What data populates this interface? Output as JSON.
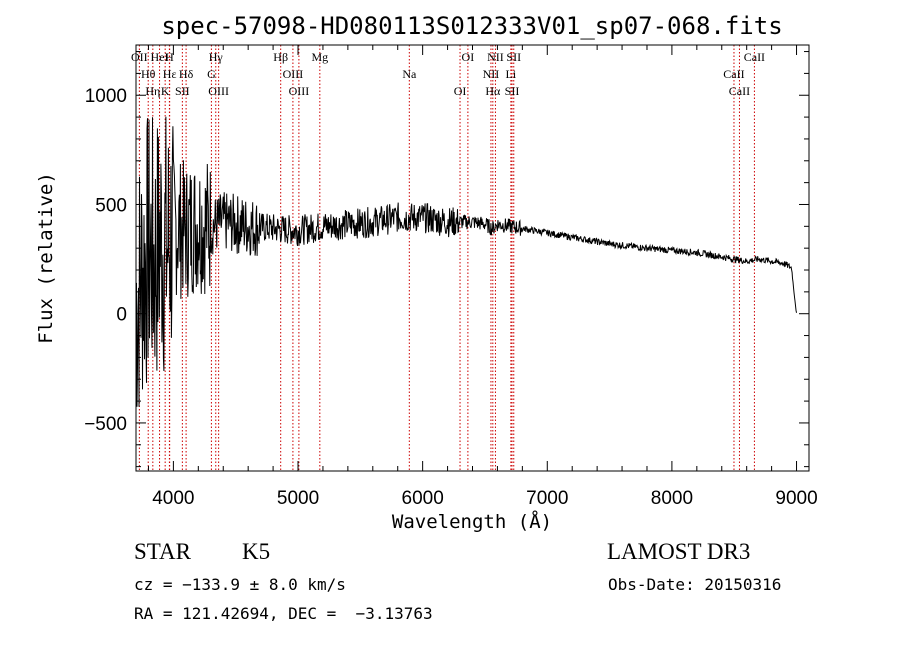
{
  "chart_data": {
    "type": "line",
    "title": "spec-57098-HD080113S012333V01_sp07-068.fits",
    "xlabel": "Wavelength (Å)",
    "ylabel": "Flux (relative)",
    "xlim": [
      3700,
      9100
    ],
    "ylim": [
      -720,
      1230
    ],
    "xticks": [
      4000,
      5000,
      6000,
      7000,
      8000,
      9000
    ],
    "yticks": [
      -500,
      0,
      500,
      1000
    ],
    "grid": false,
    "spectral_lines": [
      {
        "label": "OII",
        "wavelength": 3727
      },
      {
        "label": "Hθ",
        "wavelength": 3798
      },
      {
        "label": "Hη",
        "wavelength": 3835
      },
      {
        "label": "HeI",
        "wavelength": 3889
      },
      {
        "label": "Hε",
        "wavelength": 3970
      },
      {
        "label": "K",
        "wavelength": 3934
      },
      {
        "label": "H",
        "wavelength": 3968
      },
      {
        "label": "Hδ",
        "wavelength": 4102
      },
      {
        "label": "SII",
        "wavelength": 4072
      },
      {
        "label": "Hγ",
        "wavelength": 4340
      },
      {
        "label": "G",
        "wavelength": 4305
      },
      {
        "label": "OIII",
        "wavelength": 4363
      },
      {
        "label": "Hβ",
        "wavelength": 4861
      },
      {
        "label": "OIII",
        "wavelength": 4959
      },
      {
        "label": "OIII",
        "wavelength": 5007
      },
      {
        "label": "Mg",
        "wavelength": 5175
      },
      {
        "label": "Na",
        "wavelength": 5893
      },
      {
        "label": "OI",
        "wavelength": 6300
      },
      {
        "label": "OI",
        "wavelength": 6363
      },
      {
        "label": "NII",
        "wavelength": 6548
      },
      {
        "label": "Hα",
        "wavelength": 6563
      },
      {
        "label": "NII",
        "wavelength": 6584
      },
      {
        "label": "Li",
        "wavelength": 6708
      },
      {
        "label": "SII",
        "wavelength": 6717
      },
      {
        "label": "SII",
        "wavelength": 6731
      },
      {
        "label": "CaII",
        "wavelength": 8498
      },
      {
        "label": "CaII",
        "wavelength": 8542
      },
      {
        "label": "CaII",
        "wavelength": 8662
      }
    ],
    "series": [
      {
        "name": "flux",
        "x": [
          3700,
          3750,
          3800,
          3850,
          3900,
          3950,
          4000,
          4100,
          4200,
          4300,
          4400,
          4500,
          4600,
          4800,
          5000,
          5200,
          5400,
          5600,
          5800,
          6000,
          6200,
          6400,
          6500,
          6560,
          6600,
          6700,
          6800,
          7000,
          7200,
          7500,
          7800,
          8000,
          8200,
          8400,
          8500,
          8600,
          8700,
          8800,
          8900,
          8960,
          8980,
          9000
        ],
        "y": [
          50,
          200,
          300,
          250,
          350,
          300,
          400,
          380,
          420,
          400,
          420,
          410,
          400,
          390,
          380,
          400,
          410,
          420,
          440,
          440,
          420,
          420,
          410,
          390,
          410,
          400,
          390,
          370,
          350,
          320,
          300,
          290,
          280,
          260,
          250,
          240,
          250,
          240,
          230,
          210,
          100,
          0
        ]
      }
    ]
  },
  "info": {
    "object_type": "STAR",
    "subclass": "K5",
    "survey": "LAMOST DR3",
    "cz": "cz = −133.9 ± 8.0 km/s",
    "obs_date": "Obs-Date: 20150316",
    "coords": "RA = 121.42694, DEC =  −3.13763"
  }
}
